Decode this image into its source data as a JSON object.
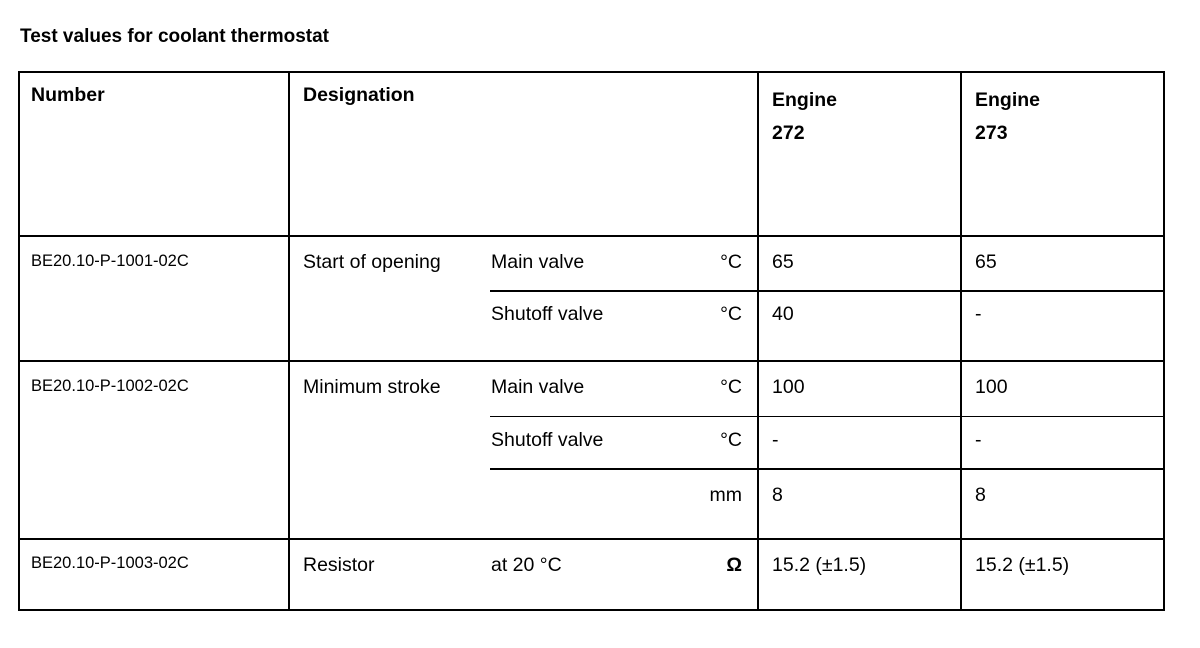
{
  "title": "Test values for coolant thermostat",
  "header": {
    "number": "Number",
    "designation": "Designation",
    "engine_a": [
      "Engine",
      "272"
    ],
    "engine_b": [
      "Engine",
      "273"
    ]
  },
  "rows": [
    {
      "number": "BE20.10-P-1001-02C",
      "designation": "Start of opening",
      "sub": [
        {
          "label": "Main valve",
          "unit": "°C",
          "e272": "65",
          "e273": "65"
        },
        {
          "label": "Shutoff valve",
          "unit": "°C",
          "e272": "40",
          "e273": "-"
        }
      ]
    },
    {
      "number": "BE20.10-P-1002-02C",
      "designation": "Minimum stroke",
      "sub": [
        {
          "label": "Main valve",
          "unit": "°C",
          "e272": "100",
          "e273": "100"
        },
        {
          "label": "Shutoff valve",
          "unit": "°C",
          "e272": "-",
          "e273": "-"
        },
        {
          "label": "",
          "unit": "mm",
          "e272": "8",
          "e273": "8"
        }
      ]
    },
    {
      "number": "BE20.10-P-1003-02C",
      "designation": "Resistor",
      "sub": [
        {
          "label": "at 20 °C",
          "unit": "Ω",
          "e272": "15.2 (±1.5)",
          "e273": "15.2 (±1.5)"
        }
      ]
    }
  ]
}
